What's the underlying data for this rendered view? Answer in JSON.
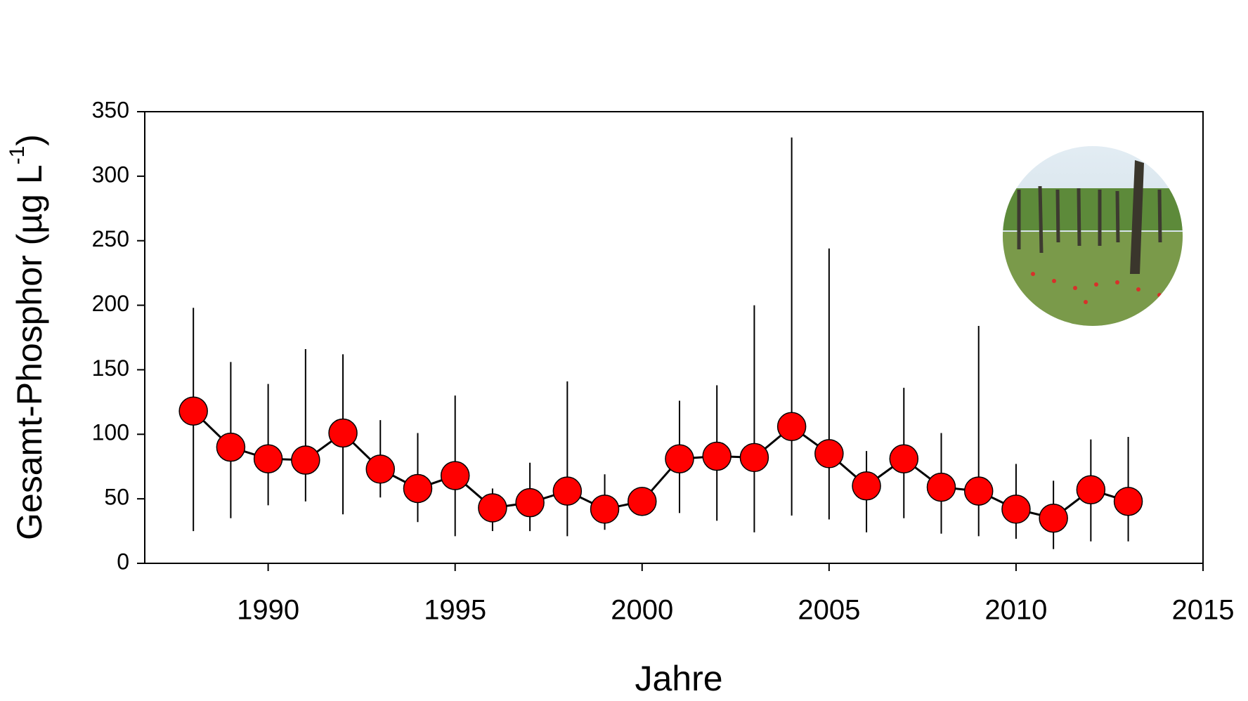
{
  "chart_data": {
    "type": "line",
    "x_label": "Jahre",
    "y_label": "Gesamt-Phosphor (µg L",
    "y_label_sup": "-1",
    "y_label_end": ")",
    "x": [
      1988,
      1989,
      1990,
      1991,
      1992,
      1993,
      1994,
      1995,
      1996,
      1997,
      1998,
      1999,
      2000,
      2001,
      2002,
      2003,
      2004,
      2005,
      2006,
      2007,
      2008,
      2009,
      2010,
      2011,
      2012,
      2013
    ],
    "series": [
      {
        "color": "#ff0000",
        "values": [
          118,
          90,
          81,
          80,
          101,
          73,
          58,
          68,
          43,
          47,
          56,
          42,
          48,
          81,
          83,
          82,
          106,
          85,
          60,
          81,
          59,
          56,
          42,
          35,
          57,
          48
        ],
        "low": [
          25,
          35,
          45,
          48,
          38,
          51,
          32,
          21,
          25,
          25,
          21,
          26,
          40,
          39,
          33,
          24,
          37,
          34,
          24,
          35,
          23,
          21,
          19,
          11,
          17,
          17
        ],
        "high": [
          198,
          156,
          139,
          166,
          162,
          111,
          101,
          130,
          58,
          78,
          141,
          69,
          52,
          126,
          138,
          200,
          330,
          244,
          87,
          136,
          101,
          184,
          77,
          64,
          96,
          98
        ]
      }
    ],
    "xlim": [
      1986.7,
      2015
    ],
    "xticks": [
      1990,
      1995,
      2000,
      2005,
      2010,
      2015
    ],
    "ylim": [
      0,
      350
    ],
    "yticks": [
      0,
      50,
      100,
      150,
      200,
      250,
      300,
      350
    ]
  }
}
